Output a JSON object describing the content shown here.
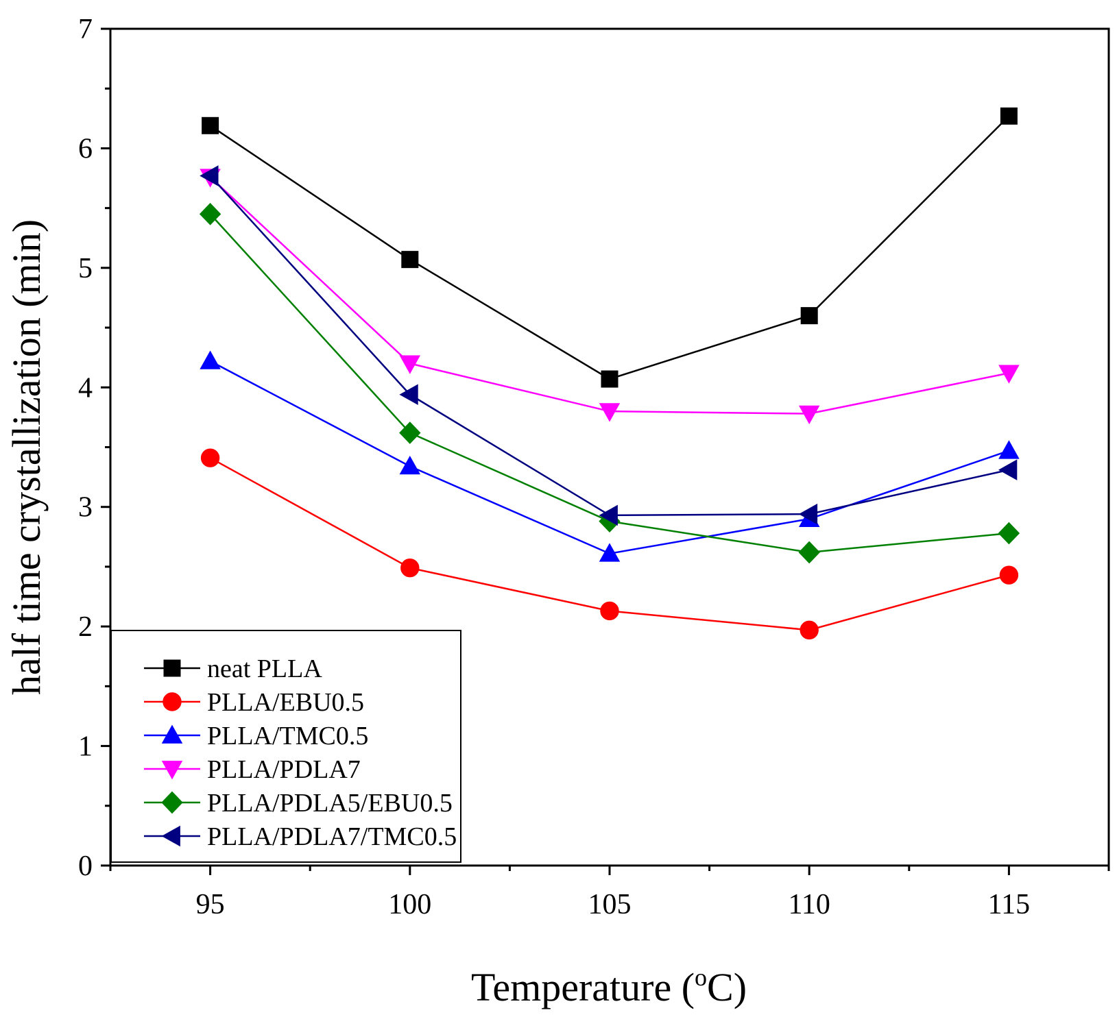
{
  "chart_data": {
    "type": "line",
    "title": "",
    "xlabel": "Temperature (",
    "xlabel_sup": "o",
    "xlabel_unit": "C)",
    "ylabel": "half time crystallization (min)",
    "x": [
      95,
      100,
      105,
      110,
      115
    ],
    "xlim": [
      92.5,
      117.5
    ],
    "ylim": [
      0,
      7
    ],
    "xticks": [
      95,
      100,
      105,
      110,
      115
    ],
    "xtick_labels": [
      "95",
      "100",
      "105",
      "110",
      "115"
    ],
    "yticks": [
      0,
      1,
      2,
      3,
      4,
      5,
      6,
      7
    ],
    "ytick_labels": [
      "0",
      "1",
      "2",
      "3",
      "4",
      "5",
      "6",
      "7"
    ],
    "grid": false,
    "legend_position": "bottom-left",
    "series": [
      {
        "name": "neat PLLA",
        "color": "#000000",
        "marker": "square",
        "values": [
          6.19,
          5.07,
          4.07,
          4.6,
          6.27
        ]
      },
      {
        "name": "PLLA/EBU0.5",
        "color": "#ff0000",
        "marker": "circle",
        "values": [
          3.41,
          2.49,
          2.13,
          1.97,
          2.43
        ]
      },
      {
        "name": "PLLA/TMC0.5",
        "color": "#0000ff",
        "marker": "triangle-up",
        "values": [
          4.22,
          3.34,
          2.61,
          2.9,
          3.47
        ]
      },
      {
        "name": "PLLA/PDLA7",
        "color": "#ff00ff",
        "marker": "triangle-down",
        "values": [
          5.76,
          4.2,
          3.8,
          3.78,
          4.12
        ]
      },
      {
        "name": "PLLA/PDLA5/EBU0.5",
        "color": "#008000",
        "marker": "diamond",
        "values": [
          5.45,
          3.62,
          2.88,
          2.62,
          2.78
        ]
      },
      {
        "name": "PLLA/PDLA7/TMC0.5",
        "color": "#000080",
        "marker": "triangle-left",
        "values": [
          5.77,
          3.94,
          2.93,
          2.94,
          3.31
        ]
      }
    ]
  }
}
